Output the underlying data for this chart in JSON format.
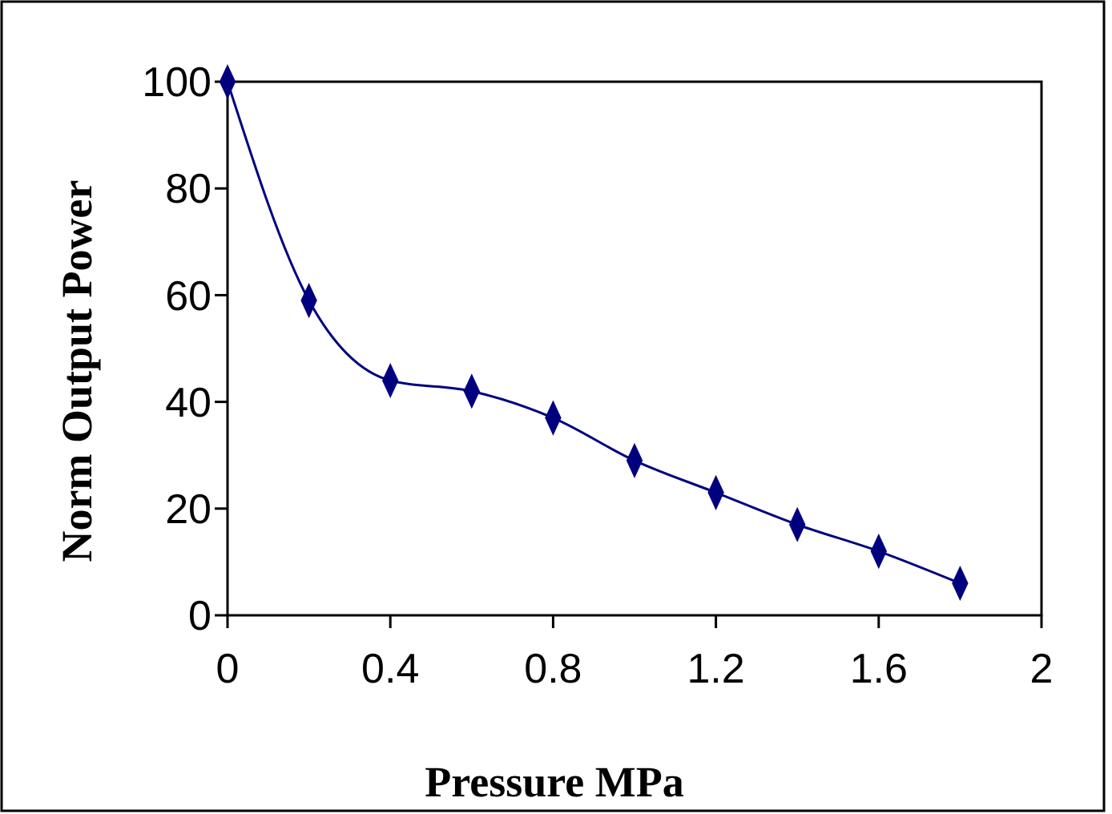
{
  "chart_data": {
    "type": "line",
    "xlabel": "Pressure MPa",
    "ylabel": "Norm Output Power",
    "x": [
      0,
      0.2,
      0.4,
      0.6,
      0.8,
      1.0,
      1.2,
      1.4,
      1.6,
      1.8
    ],
    "series": [
      {
        "color": "#00007f",
        "values": [
          100,
          59,
          44,
          42,
          37,
          29,
          23,
          17,
          12,
          6
        ]
      }
    ],
    "xlim": [
      0,
      2
    ],
    "xticks": [
      0,
      0.4,
      0.8,
      1.2,
      1.6,
      2
    ],
    "ylim": [
      0,
      100
    ],
    "yticks": [
      0,
      20,
      40,
      60,
      80,
      100
    ],
    "marker": "diamond",
    "line_style": "solid",
    "grid": false
  }
}
